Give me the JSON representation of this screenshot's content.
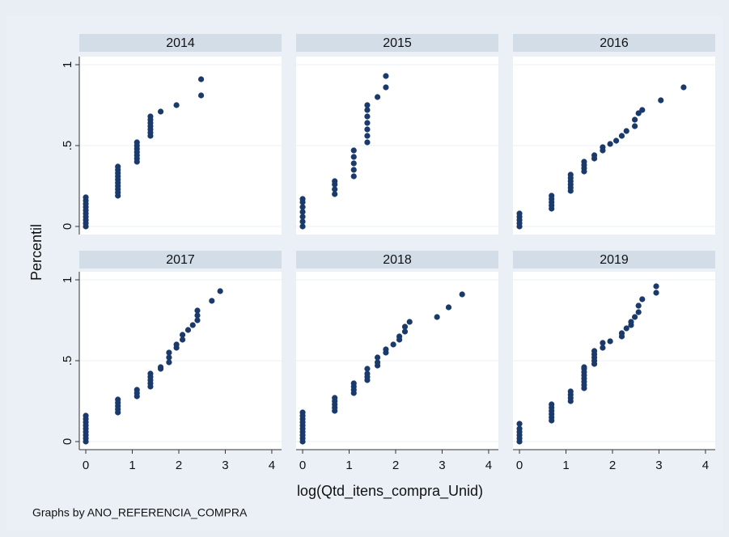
{
  "chart_data": {
    "type": "scatter",
    "y_label": "Percentil",
    "x_label": "log(Qtd_itens_compra_Unid)",
    "note": "Graphs by ANO_REFERENCIA_COMPRA",
    "xlim": [
      -0.14,
      4.21
    ],
    "ylim": [
      -0.05,
      1.05
    ],
    "xticks": [
      0,
      1,
      2,
      3,
      4
    ],
    "yticks": [
      0,
      {
        "value": 0.5,
        "label": ".5"
      },
      1
    ],
    "grid": true,
    "color": "#1a3a6b",
    "facets": [
      {
        "title": "2014",
        "x": [
          0,
          0,
          0,
          0,
          0,
          0,
          0,
          0,
          0,
          0,
          0.69,
          0.69,
          0.69,
          0.69,
          0.69,
          0.69,
          0.69,
          0.69,
          0.69,
          0.69,
          1.1,
          1.1,
          1.1,
          1.1,
          1.1,
          1.1,
          1.1,
          1.39,
          1.39,
          1.39,
          1.39,
          1.39,
          1.39,
          1.39,
          1.61,
          1.95,
          2.48,
          2.48
        ],
        "y": [
          0,
          0.02,
          0.04,
          0.06,
          0.08,
          0.1,
          0.12,
          0.14,
          0.16,
          0.18,
          0.19,
          0.21,
          0.23,
          0.25,
          0.27,
          0.29,
          0.31,
          0.33,
          0.35,
          0.37,
          0.4,
          0.42,
          0.44,
          0.46,
          0.48,
          0.5,
          0.52,
          0.56,
          0.58,
          0.6,
          0.62,
          0.64,
          0.66,
          0.68,
          0.71,
          0.75,
          0.81,
          0.91
        ]
      },
      {
        "title": "2015",
        "x": [
          0,
          0,
          0,
          0,
          0,
          0,
          0,
          0.69,
          0.69,
          0.69,
          0.69,
          1.1,
          1.1,
          1.1,
          1.1,
          1.1,
          1.39,
          1.39,
          1.39,
          1.39,
          1.39,
          1.39,
          1.39,
          1.61,
          1.79,
          1.79
        ],
        "y": [
          0,
          0.03,
          0.06,
          0.09,
          0.12,
          0.15,
          0.17,
          0.2,
          0.23,
          0.26,
          0.28,
          0.31,
          0.35,
          0.39,
          0.43,
          0.47,
          0.52,
          0.56,
          0.6,
          0.64,
          0.68,
          0.72,
          0.75,
          0.8,
          0.86,
          0.93
        ]
      },
      {
        "title": "2016",
        "x": [
          0,
          0,
          0,
          0,
          0,
          0.69,
          0.69,
          0.69,
          0.69,
          0.69,
          1.1,
          1.1,
          1.1,
          1.1,
          1.1,
          1.1,
          1.39,
          1.39,
          1.39,
          1.39,
          1.61,
          1.61,
          1.79,
          1.79,
          1.95,
          2.08,
          2.2,
          2.3,
          2.48,
          2.48,
          2.56,
          2.64,
          3.04,
          3.53
        ],
        "y": [
          0,
          0.02,
          0.04,
          0.06,
          0.08,
          0.11,
          0.13,
          0.15,
          0.17,
          0.19,
          0.22,
          0.24,
          0.26,
          0.28,
          0.3,
          0.32,
          0.34,
          0.36,
          0.38,
          0.4,
          0.42,
          0.44,
          0.47,
          0.49,
          0.51,
          0.53,
          0.56,
          0.59,
          0.62,
          0.66,
          0.7,
          0.72,
          0.78,
          0.86
        ]
      },
      {
        "title": "2017",
        "x": [
          0,
          0,
          0,
          0,
          0,
          0,
          0,
          0,
          0,
          0.69,
          0.69,
          0.69,
          0.69,
          0.69,
          1.1,
          1.1,
          1.1,
          1.39,
          1.39,
          1.39,
          1.39,
          1.39,
          1.61,
          1.61,
          1.79,
          1.79,
          1.79,
          1.95,
          1.95,
          2.08,
          2.08,
          2.2,
          2.3,
          2.4,
          2.4,
          2.4,
          2.71,
          2.89
        ],
        "y": [
          0,
          0.02,
          0.04,
          0.06,
          0.08,
          0.1,
          0.12,
          0.14,
          0.16,
          0.18,
          0.2,
          0.22,
          0.24,
          0.26,
          0.28,
          0.3,
          0.32,
          0.34,
          0.36,
          0.38,
          0.4,
          0.42,
          0.45,
          0.46,
          0.49,
          0.52,
          0.55,
          0.58,
          0.6,
          0.63,
          0.66,
          0.69,
          0.72,
          0.75,
          0.78,
          0.81,
          0.87,
          0.93
        ]
      },
      {
        "title": "2018",
        "x": [
          0,
          0,
          0,
          0,
          0,
          0,
          0,
          0,
          0,
          0,
          0.69,
          0.69,
          0.69,
          0.69,
          0.69,
          1.1,
          1.1,
          1.1,
          1.1,
          1.39,
          1.39,
          1.39,
          1.39,
          1.61,
          1.61,
          1.61,
          1.79,
          1.79,
          1.95,
          2.08,
          2.08,
          2.2,
          2.2,
          2.3,
          2.89,
          3.14,
          3.43
        ],
        "y": [
          0,
          0.02,
          0.04,
          0.06,
          0.08,
          0.1,
          0.12,
          0.14,
          0.16,
          0.18,
          0.19,
          0.21,
          0.23,
          0.25,
          0.27,
          0.3,
          0.32,
          0.34,
          0.36,
          0.38,
          0.4,
          0.42,
          0.45,
          0.47,
          0.49,
          0.52,
          0.55,
          0.57,
          0.6,
          0.63,
          0.65,
          0.68,
          0.71,
          0.74,
          0.77,
          0.83,
          0.91
        ]
      },
      {
        "title": "2019",
        "x": [
          0,
          0,
          0,
          0,
          0,
          0,
          0.69,
          0.69,
          0.69,
          0.69,
          0.69,
          0.69,
          1.1,
          1.1,
          1.1,
          1.1,
          1.39,
          1.39,
          1.39,
          1.39,
          1.39,
          1.39,
          1.39,
          1.39,
          1.61,
          1.61,
          1.61,
          1.61,
          1.61,
          1.79,
          1.79,
          1.95,
          2.2,
          2.2,
          2.3,
          2.4,
          2.4,
          2.48,
          2.56,
          2.56,
          2.64,
          2.94,
          2.94
        ],
        "y": [
          0,
          0.02,
          0.04,
          0.06,
          0.08,
          0.11,
          0.13,
          0.15,
          0.17,
          0.19,
          0.21,
          0.23,
          0.25,
          0.27,
          0.29,
          0.31,
          0.33,
          0.35,
          0.37,
          0.39,
          0.41,
          0.43,
          0.45,
          0.46,
          0.48,
          0.5,
          0.52,
          0.54,
          0.56,
          0.58,
          0.61,
          0.62,
          0.65,
          0.67,
          0.7,
          0.72,
          0.74,
          0.77,
          0.8,
          0.84,
          0.88,
          0.92,
          0.96
        ]
      }
    ]
  }
}
